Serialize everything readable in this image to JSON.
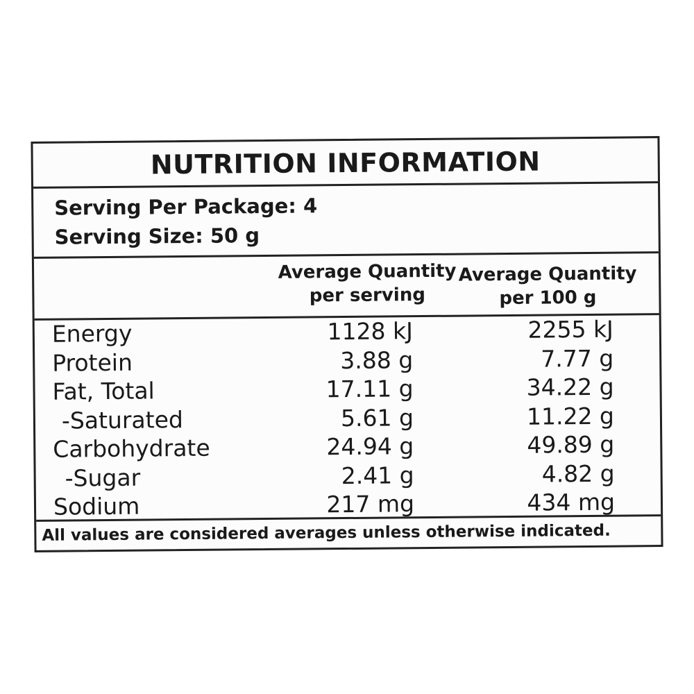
{
  "header": {
    "title": "NUTRITION INFORMATION"
  },
  "serving": [
    "Serving Per Package: 4",
    "Serving Size: 50 g"
  ],
  "table": {
    "columns": [
      [
        "Average Quantity",
        "per serving"
      ],
      [
        "Average Quantity",
        "per 100 g"
      ]
    ],
    "rows": [
      [
        "Energy",
        "1128 kJ",
        "2255 kJ"
      ],
      [
        "Protein",
        "3.88 g",
        "7.77 g"
      ],
      [
        "Fat, Total",
        "17.11 g",
        "34.22 g"
      ],
      [
        "-Saturated",
        "5.61 g",
        "11.22 g"
      ],
      [
        "Carbohydrate",
        "24.94 g",
        "49.89 g"
      ],
      [
        "-Sugar",
        "2.41 g",
        "4.82 g"
      ],
      [
        "Sodium",
        "217 mg",
        "434 mg"
      ]
    ]
  },
  "footer": "All values are considered averages unless otherwise indicated."
}
